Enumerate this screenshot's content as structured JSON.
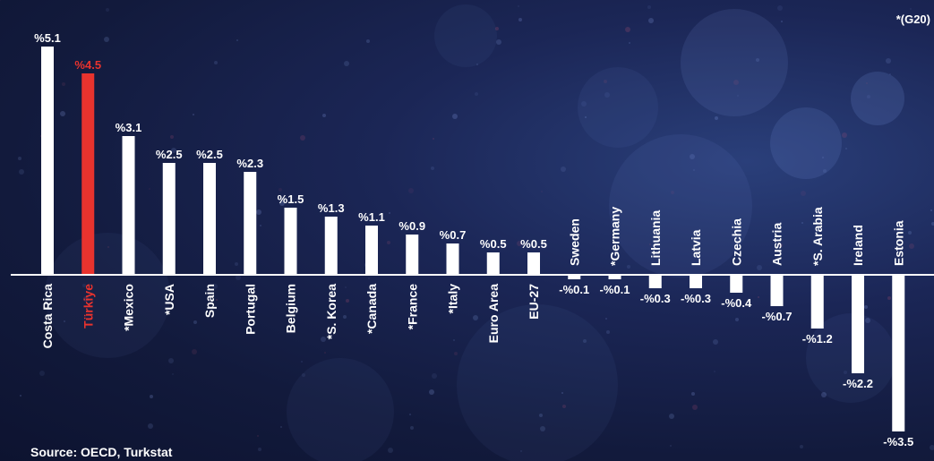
{
  "header": {
    "g20_note": "*(G20)"
  },
  "footer": {
    "source": "Source: OECD, Turkstat"
  },
  "colors": {
    "bar": "#ffffff",
    "highlight": "#e8332e",
    "text": "#ffffff",
    "axis": "#ffffff"
  },
  "chart_data": {
    "type": "bar",
    "categories": [
      "Costa Rica",
      "Türkiye",
      "*Mexico",
      "*USA",
      "Spain",
      "Portugal",
      "Belgium",
      "*S. Korea",
      "*Canada",
      "*France",
      "*Italy",
      "Euro Area",
      "EU-27",
      "Sweden",
      "*Germany",
      "Lithuania",
      "Latvia",
      "Czechia",
      "Austria",
      "*S. Arabia",
      "Ireland",
      "Estonia"
    ],
    "values": [
      5.1,
      4.5,
      3.1,
      2.5,
      2.5,
      2.3,
      1.5,
      1.3,
      1.1,
      0.9,
      0.7,
      0.5,
      0.5,
      -0.1,
      -0.1,
      -0.3,
      -0.3,
      -0.4,
      -0.7,
      -1.2,
      -2.2,
      -3.5
    ],
    "value_labels": [
      "%5.1",
      "%4.5",
      "%3.1",
      "%2.5",
      "%2.5",
      "%2.3",
      "%1.5",
      "%1.3",
      "%1.1",
      "%0.9",
      "%0.7",
      "%0.5",
      "%0.5",
      "-%0.1",
      "-%0.1",
      "-%0.3",
      "-%0.3",
      "-%0.4",
      "-%0.7",
      "-%1.2",
      "-%2.2",
      "-%3.5"
    ],
    "highlight": "Türkiye",
    "ylim": [
      -3.5,
      5.1
    ],
    "grid": false,
    "legend": "none"
  }
}
